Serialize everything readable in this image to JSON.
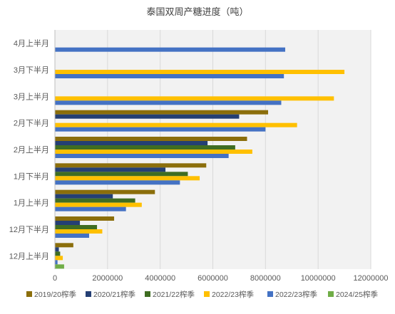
{
  "chart_data": {
    "type": "bar",
    "orientation": "horizontal",
    "title": "泰国双周产糖进度（吨）",
    "categories": [
      "12月上半月",
      "12月下半月",
      "1月上半月",
      "1月下半月",
      "2月上半月",
      "2月下半月",
      "3月上半月",
      "3月下半月",
      "4月上半月"
    ],
    "xlim": [
      0,
      12000000
    ],
    "xticks": [
      0,
      2000000,
      4000000,
      6000000,
      8000000,
      10000000,
      12000000
    ],
    "xtick_labels": [
      "0",
      "2000000",
      "4000000",
      "6000000",
      "8000000",
      "10000000",
      "12000000"
    ],
    "grid": true,
    "legend_position": "bottom",
    "series": [
      {
        "name": "2019/20榨季",
        "color": "#8B6E0B",
        "values": [
          700000,
          2250000,
          3800000,
          5750000,
          7300000,
          8100000,
          null,
          null,
          null
        ]
      },
      {
        "name": "2020/21榨季",
        "color": "#243F74",
        "values": [
          150000,
          950000,
          2200000,
          4200000,
          5800000,
          7000000,
          null,
          null,
          null
        ]
      },
      {
        "name": "2021/22榨季",
        "color": "#3F6D22",
        "values": [
          200000,
          1600000,
          3050000,
          5050000,
          6850000,
          null,
          null,
          null,
          null
        ]
      },
      {
        "name": "2022/23榨季",
        "color": "#FFC000",
        "values": [
          300000,
          1800000,
          3300000,
          5500000,
          7500000,
          9200000,
          10600000,
          11000000,
          null
        ]
      },
      {
        "name": "2022/23榨季",
        "color": "#4472C4",
        "values": [
          100000,
          1300000,
          2700000,
          4750000,
          6600000,
          8000000,
          8600000,
          8700000,
          8750000
        ]
      },
      {
        "name": "2024/25榨季",
        "color": "#70AD47",
        "values": [
          350000,
          null,
          null,
          null,
          null,
          null,
          null,
          null,
          null
        ]
      }
    ]
  }
}
